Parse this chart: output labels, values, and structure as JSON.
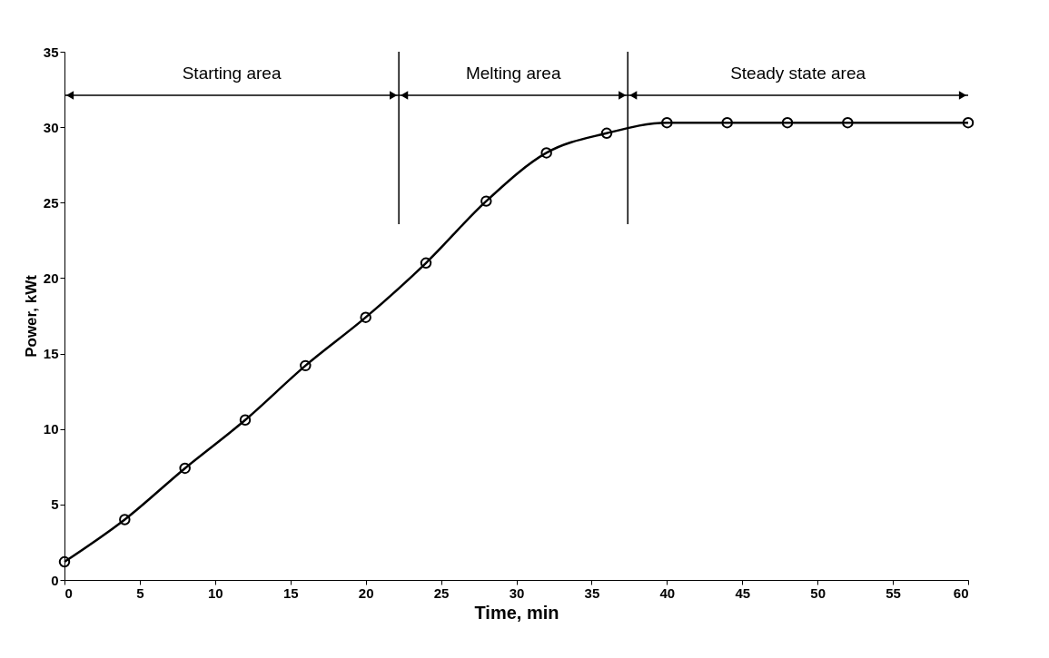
{
  "chart_data": {
    "type": "line",
    "xlabel": "Time, min",
    "ylabel": "Power, kWt",
    "x": [
      0,
      4,
      8,
      12,
      16,
      20,
      24,
      28,
      32,
      36,
      40,
      44,
      48,
      52,
      60
    ],
    "series": [
      {
        "color": "#000000",
        "values": [
          1.2,
          4.0,
          7.4,
          10.6,
          14.2,
          17.4,
          21.0,
          25.1,
          28.3,
          29.6,
          30.3,
          30.3,
          30.3,
          30.3,
          30.3
        ]
      }
    ],
    "xlim": [
      0,
      60
    ],
    "xticks": [
      0,
      5,
      10,
      15,
      20,
      25,
      30,
      35,
      40,
      45,
      50,
      55,
      60
    ],
    "ylim": [
      0,
      35
    ],
    "yticks": [
      0,
      5,
      10,
      15,
      20,
      25,
      30,
      35
    ],
    "marker": "circle",
    "line_style": "solid",
    "grid": false,
    "ref_lines": [
      {
        "axis": "x",
        "value": 22.2,
        "label": null,
        "color": "#000000"
      },
      {
        "axis": "x",
        "value": 37.4,
        "label": null,
        "color": "#000000"
      }
    ],
    "annotations": [
      "Starting area",
      "Melting area",
      "Steady state area"
    ]
  }
}
